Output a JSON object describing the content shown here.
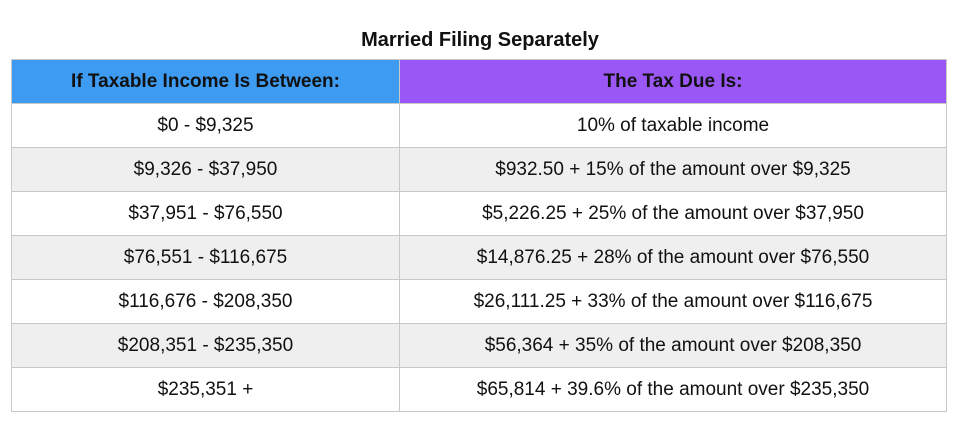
{
  "title": "Married Filing Separately",
  "header": {
    "col1": "If Taxable Income Is Between:",
    "col2": "The Tax Due Is:"
  },
  "colors": {
    "header_col1": "#3d9bf2",
    "header_col2": "#9a57f5",
    "alt_row": "#efefef"
  },
  "rows": [
    {
      "range": "$0 - $9,325",
      "tax": "10% of taxable income"
    },
    {
      "range": "$9,326 - $37,950",
      "tax": "$932.50 + 15% of the amount over $9,325"
    },
    {
      "range": "$37,951 - $76,550",
      "tax": "$5,226.25 + 25% of the amount over $37,950"
    },
    {
      "range": "$76,551 - $116,675",
      "tax": "$14,876.25 + 28% of the amount over $76,550"
    },
    {
      "range": "$116,676 - $208,350",
      "tax": "$26,111.25 + 33% of the amount over $116,675"
    },
    {
      "range": "$208,351 - $235,350",
      "tax": "$56,364 + 35% of the amount over $208,350"
    },
    {
      "range": "$235,351 +",
      "tax": "$65,814 + 39.6%  of the amount over $235,350"
    }
  ]
}
